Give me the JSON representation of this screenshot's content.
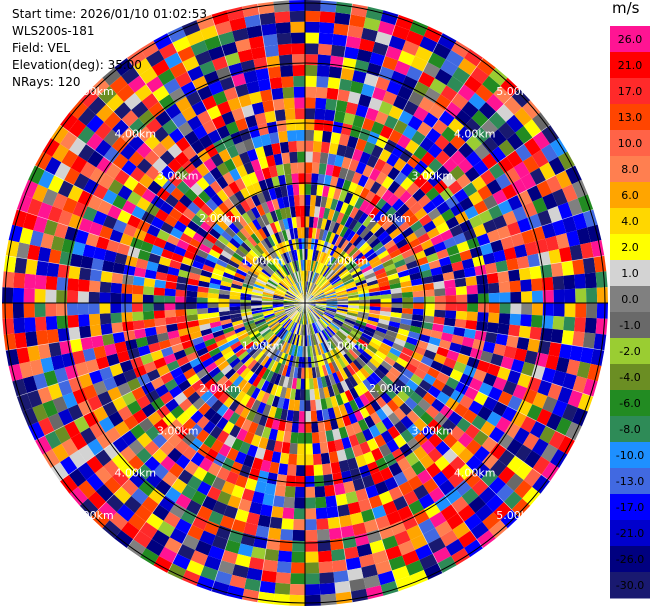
{
  "header": {
    "start_time": "Start time: 2026/01/10 01:02:53",
    "instrument": "WLS200s-181",
    "field": "Field: VEL",
    "elevation": "Elevation(deg): 35.00",
    "nrays": "NRays: 120"
  },
  "colorbar": {
    "unit": "m/s",
    "levels": [
      {
        "label": "26.0",
        "color": "#ff1493"
      },
      {
        "label": "21.0",
        "color": "#ff0000"
      },
      {
        "label": "17.0",
        "color": "#ff2a2a"
      },
      {
        "label": "13.0",
        "color": "#ff4500"
      },
      {
        "label": "10.0",
        "color": "#ff6347"
      },
      {
        "label": "8.0",
        "color": "#ff7f50"
      },
      {
        "label": "6.0",
        "color": "#ffa500"
      },
      {
        "label": "4.0",
        "color": "#ffd700"
      },
      {
        "label": "2.0",
        "color": "#ffff00"
      },
      {
        "label": "1.0",
        "color": "#d3d3d3"
      },
      {
        "label": "0.0",
        "color": "#808080"
      },
      {
        "label": "-1.0",
        "color": "#696969"
      },
      {
        "label": "-2.0",
        "color": "#9acd32"
      },
      {
        "label": "-4.0",
        "color": "#6b8e23"
      },
      {
        "label": "-6.0",
        "color": "#228b22"
      },
      {
        "label": "-8.0",
        "color": "#2e8b57"
      },
      {
        "label": "-10.0",
        "color": "#1e90ff"
      },
      {
        "label": "-13.0",
        "color": "#4169e1"
      },
      {
        "label": "-17.0",
        "color": "#0000ff"
      },
      {
        "label": "-21.0",
        "color": "#0000cd"
      },
      {
        "label": "-26.0",
        "color": "#000080"
      },
      {
        "label": "-30.0",
        "color": "#191970"
      }
    ]
  },
  "chart_data": {
    "type": "heatmap",
    "projection": "polar PPI",
    "field": "VEL",
    "units": "m/s",
    "elevation_deg": 35.0,
    "n_rays": 120,
    "n_range_gates": 28,
    "range_rings_km": [
      "1.00km",
      "2.00km",
      "3.00km",
      "4.00km",
      "5.00km"
    ],
    "ring_label_directions": [
      "NW",
      "NE",
      "SW",
      "SE"
    ],
    "values_summary": "Dense speckled velocity field dominated by large-magnitude positive (pink/red) and negative (blue/navy) values at outer ranges; near-zero to small positive (yellow, grey, olive) values concentrated inside ~1 km."
  }
}
